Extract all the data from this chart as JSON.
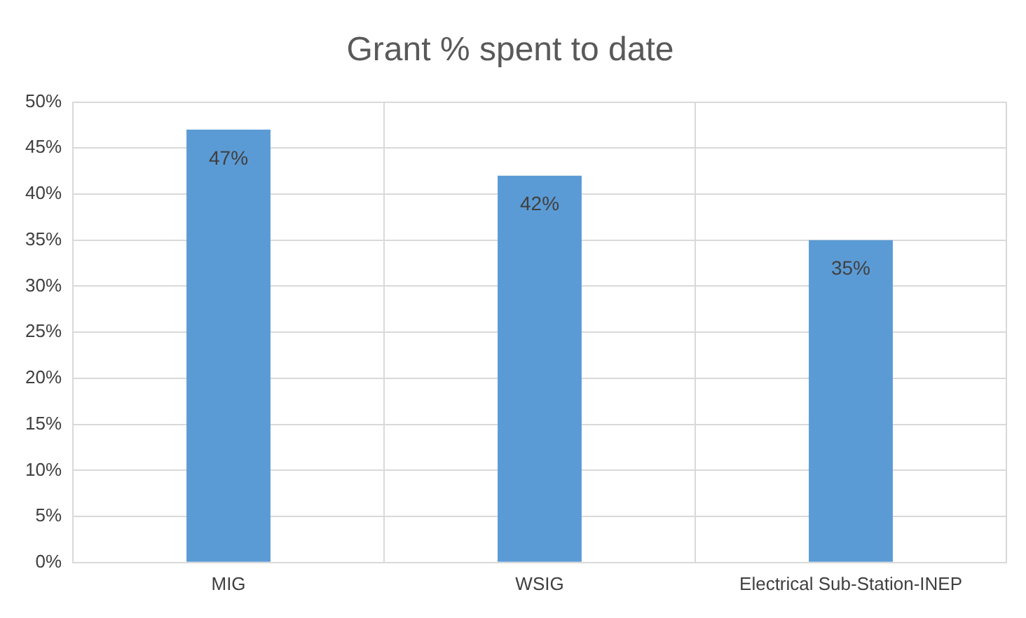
{
  "chart_data": {
    "type": "bar",
    "title": "Grant % spent to date",
    "categories": [
      "MIG",
      "WSIG",
      "Electrical Sub-Station-INEP"
    ],
    "values": [
      47,
      42,
      35
    ],
    "value_labels": [
      "47%",
      "42%",
      "35%"
    ],
    "color": "#5b9bd5",
    "ylim": [
      0,
      50
    ],
    "yticks": [
      {
        "value": 0,
        "label": "0%"
      },
      {
        "value": 5,
        "label": "5%"
      },
      {
        "value": 10,
        "label": "10%"
      },
      {
        "value": 15,
        "label": "15%"
      },
      {
        "value": 20,
        "label": "20%"
      },
      {
        "value": 25,
        "label": "25%"
      },
      {
        "value": 30,
        "label": "30%"
      },
      {
        "value": 35,
        "label": "35%"
      },
      {
        "value": 40,
        "label": "40%"
      },
      {
        "value": 45,
        "label": "45%"
      },
      {
        "value": 50,
        "label": "50%"
      }
    ],
    "grid": true,
    "legend": false
  }
}
